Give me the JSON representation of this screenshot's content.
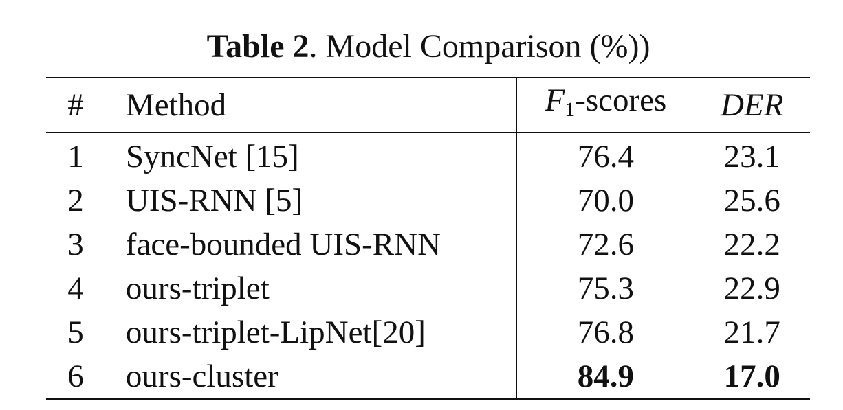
{
  "caption": {
    "label": "Table 2",
    "text": ". Model Comparison (%))"
  },
  "table": {
    "headers": {
      "num": "#",
      "method": "Method",
      "f1_main": "F",
      "f1_sub": "1",
      "f1_suffix": "-scores",
      "der": "DER"
    },
    "rows": [
      {
        "num": "1",
        "method": "SyncNet [15]",
        "f1": "76.4",
        "der": "23.1"
      },
      {
        "num": "2",
        "method": "UIS-RNN [5]",
        "f1": "70.0",
        "der": "25.6"
      },
      {
        "num": "3",
        "method": "face-bounded UIS-RNN",
        "f1": "72.6",
        "der": "22.2"
      },
      {
        "num": "4",
        "method": "ours-triplet",
        "f1": "75.3",
        "der": "22.9"
      },
      {
        "num": "5",
        "method": "ours-triplet-LipNet[20]",
        "f1": "76.8",
        "der": "21.7"
      },
      {
        "num": "6",
        "method": "ours-cluster",
        "f1": "84.9",
        "der": "17.0"
      }
    ]
  }
}
